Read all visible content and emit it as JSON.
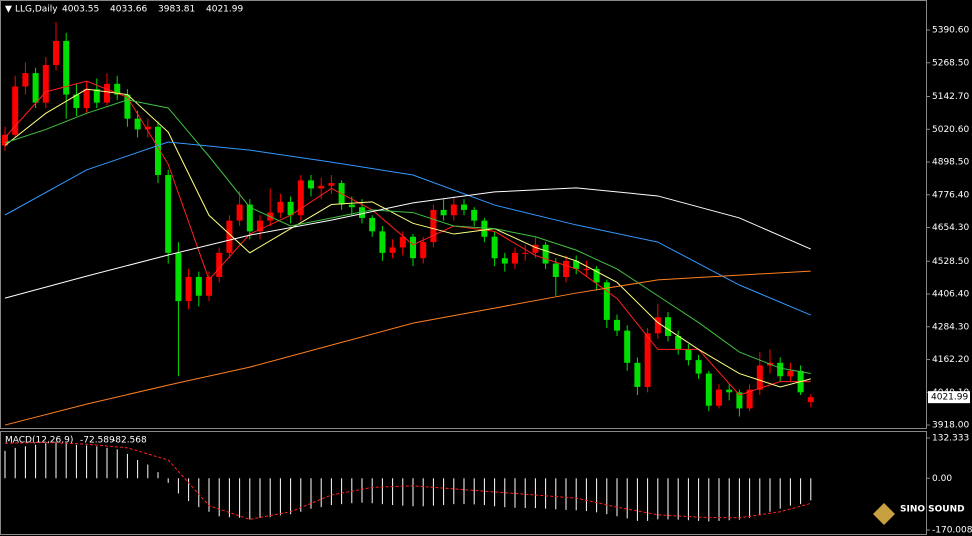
{
  "chart_data": [
    {
      "type": "candlestick",
      "symbol": "LLG,Daily",
      "up_color": "#ff0000",
      "down_color": "#00e000",
      "candles": [
        [
          4960,
          5030,
          4940,
          5000
        ],
        [
          5000,
          5220,
          4990,
          5180
        ],
        [
          5180,
          5270,
          5150,
          5230
        ],
        [
          5230,
          5250,
          5100,
          5120
        ],
        [
          5120,
          5290,
          5100,
          5260
        ],
        [
          5260,
          5420,
          5240,
          5350
        ],
        [
          5350,
          5380,
          5060,
          5150
        ],
        [
          5150,
          5190,
          5070,
          5100
        ],
        [
          5100,
          5200,
          5080,
          5170
        ],
        [
          5170,
          5210,
          5100,
          5120
        ],
        [
          5120,
          5230,
          5110,
          5190
        ],
        [
          5190,
          5220,
          5130,
          5150
        ],
        [
          5150,
          5170,
          5030,
          5060
        ],
        [
          5060,
          5090,
          4990,
          5020
        ],
        [
          5020,
          5060,
          4990,
          5030
        ],
        [
          5030,
          5050,
          4820,
          4850
        ],
        [
          4850,
          4870,
          4520,
          4560
        ],
        [
          4560,
          4600,
          4100,
          4380
        ],
        [
          4380,
          4500,
          4350,
          4470
        ],
        [
          4470,
          4490,
          4360,
          4400
        ],
        [
          4400,
          4490,
          4380,
          4470
        ],
        [
          4470,
          4580,
          4450,
          4560
        ],
        [
          4560,
          4700,
          4540,
          4680
        ],
        [
          4680,
          4790,
          4660,
          4740
        ],
        [
          4740,
          4760,
          4610,
          4640
        ],
        [
          4640,
          4700,
          4610,
          4680
        ],
        [
          4680,
          4800,
          4660,
          4710
        ],
        [
          4710,
          4780,
          4690,
          4750
        ],
        [
          4750,
          4770,
          4670,
          4700
        ],
        [
          4700,
          4850,
          4680,
          4830
        ],
        [
          4830,
          4850,
          4770,
          4800
        ],
        [
          4800,
          4840,
          4760,
          4810
        ],
        [
          4810,
          4850,
          4780,
          4820
        ],
        [
          4820,
          4830,
          4720,
          4740
        ],
        [
          4740,
          4770,
          4700,
          4730
        ],
        [
          4730,
          4760,
          4670,
          4690
        ],
        [
          4690,
          4700,
          4620,
          4640
        ],
        [
          4640,
          4660,
          4530,
          4560
        ],
        [
          4560,
          4610,
          4540,
          4580
        ],
        [
          4580,
          4640,
          4550,
          4620
        ],
        [
          4620,
          4630,
          4510,
          4540
        ],
        [
          4540,
          4620,
          4520,
          4600
        ],
        [
          4600,
          4740,
          4580,
          4720
        ],
        [
          4720,
          4760,
          4680,
          4700
        ],
        [
          4700,
          4770,
          4680,
          4740
        ],
        [
          4740,
          4760,
          4700,
          4720
        ],
        [
          4720,
          4730,
          4660,
          4680
        ],
        [
          4680,
          4690,
          4600,
          4620
        ],
        [
          4620,
          4640,
          4510,
          4540
        ],
        [
          4540,
          4560,
          4490,
          4520
        ],
        [
          4520,
          4580,
          4500,
          4560
        ],
        [
          4560,
          4590,
          4530,
          4560
        ],
        [
          4560,
          4620,
          4540,
          4590
        ],
        [
          4590,
          4600,
          4500,
          4520
        ],
        [
          4520,
          4540,
          4400,
          4470
        ],
        [
          4470,
          4550,
          4450,
          4530
        ],
        [
          4530,
          4550,
          4480,
          4500
        ],
        [
          4500,
          4530,
          4470,
          4500
        ],
        [
          4500,
          4510,
          4420,
          4450
        ],
        [
          4450,
          4460,
          4280,
          4310
        ],
        [
          4310,
          4330,
          4250,
          4270
        ],
        [
          4270,
          4290,
          4120,
          4150
        ],
        [
          4150,
          4170,
          4030,
          4060
        ],
        [
          4060,
          4280,
          4040,
          4260
        ],
        [
          4260,
          4370,
          4240,
          4320
        ],
        [
          4320,
          4340,
          4230,
          4250
        ],
        [
          4250,
          4270,
          4180,
          4200
        ],
        [
          4200,
          4220,
          4140,
          4160
        ],
        [
          4160,
          4180,
          4090,
          4110
        ],
        [
          4110,
          4120,
          3970,
          3990
        ],
        [
          3990,
          4070,
          3980,
          4050
        ],
        [
          4050,
          4070,
          4010,
          4040
        ],
        [
          4040,
          4050,
          3950,
          3980
        ],
        [
          3980,
          4070,
          3970,
          4050
        ],
        [
          4050,
          4190,
          4030,
          4140
        ],
        [
          4140,
          4200,
          4110,
          4150
        ],
        [
          4150,
          4170,
          4080,
          4100
        ],
        [
          4100,
          4150,
          4080,
          4120
        ],
        [
          4120,
          4140,
          4030,
          4040
        ],
        [
          4003.55,
          4033.66,
          3983.81,
          4021.99
        ]
      ],
      "lines": [
        {
          "color": "#ff2020",
          "x": [
            0,
            4,
            8,
            12,
            16,
            20,
            24,
            28,
            32,
            36,
            40,
            44,
            48,
            52,
            56,
            60,
            64,
            68,
            72,
            76,
            79
          ],
          "values": [
            4990,
            5160,
            5200,
            5140,
            4890,
            4460,
            4630,
            4700,
            4800,
            4720,
            4590,
            4660,
            4640,
            4550,
            4500,
            4390,
            4200,
            4200,
            4030,
            4080,
            4080
          ]
        },
        {
          "color": "#ffff80",
          "x": [
            0,
            4,
            8,
            12,
            16,
            20,
            24,
            28,
            32,
            36,
            40,
            44,
            48,
            52,
            56,
            60,
            64,
            68,
            72,
            76,
            79
          ],
          "values": [
            4960,
            5080,
            5170,
            5150,
            5010,
            4700,
            4560,
            4650,
            4740,
            4750,
            4670,
            4630,
            4650,
            4580,
            4530,
            4450,
            4300,
            4200,
            4110,
            4060,
            4090
          ]
        },
        {
          "color": "#40c040",
          "x": [
            0,
            4,
            8,
            12,
            16,
            20,
            24,
            28,
            32,
            36,
            40,
            44,
            48,
            52,
            56,
            60,
            64,
            68,
            72,
            76,
            79
          ],
          "values": [
            4970,
            5020,
            5080,
            5130,
            5100,
            4920,
            4730,
            4660,
            4690,
            4720,
            4710,
            4660,
            4650,
            4620,
            4570,
            4500,
            4400,
            4300,
            4190,
            4130,
            4110
          ]
        },
        {
          "color": "#3399ff",
          "x": [
            0,
            8,
            16,
            24,
            32,
            40,
            48,
            56,
            64,
            72,
            79
          ],
          "values": [
            4701,
            4869,
            4973,
            4943,
            4898,
            4850,
            4738,
            4664,
            4600,
            4440,
            4328
          ]
        },
        {
          "color": "#ffffff",
          "x": [
            0,
            8,
            16,
            24,
            32,
            40,
            48,
            56,
            64,
            72,
            79
          ],
          "values": [
            4391,
            4473,
            4552,
            4626,
            4682,
            4746,
            4787,
            4802,
            4772,
            4690,
            4574
          ]
        },
        {
          "color": "#ff8020",
          "x": [
            0,
            8,
            16,
            24,
            32,
            40,
            48,
            56,
            64,
            72,
            79
          ],
          "values": [
            3918,
            3996,
            4067,
            4134,
            4216,
            4298,
            4354,
            4410,
            4459,
            4477,
            4492
          ]
        }
      ],
      "ylim": [
        3907,
        5495
      ],
      "yticks": [
        {
          "value": 5390.6,
          "label": "5390.60"
        },
        {
          "value": 5268.5,
          "label": "5268.50"
        },
        {
          "value": 5142.7,
          "label": "5142.70"
        },
        {
          "value": 5020.6,
          "label": "5020.60"
        },
        {
          "value": 4898.5,
          "label": "4898.50"
        },
        {
          "value": 4776.4,
          "label": "4776.40"
        },
        {
          "value": 4654.3,
          "label": "4654.30"
        },
        {
          "value": 4528.5,
          "label": "4528.50"
        },
        {
          "value": 4406.4,
          "label": "4406.40"
        },
        {
          "value": 4284.3,
          "label": "4284.30"
        },
        {
          "value": 4162.2,
          "label": "4162.20"
        },
        {
          "value": 4040.1,
          "label": "4040.10"
        },
        {
          "value": 3918,
          "label": "3918.00"
        }
      ]
    },
    {
      "type": "macd",
      "title": "MACD(12,26,9)",
      "hist_color": "#ffffff",
      "histogram": [
        90,
        100,
        105,
        110,
        115,
        120,
        115,
        110,
        108,
        105,
        100,
        95,
        80,
        60,
        45,
        20,
        -15,
        -50,
        -75,
        -95,
        -110,
        -125,
        -128,
        -130,
        -135,
        -130,
        -128,
        -122,
        -118,
        -110,
        -100,
        -95,
        -88,
        -85,
        -82,
        -80,
        -82,
        -85,
        -88,
        -90,
        -92,
        -92,
        -90,
        -88,
        -85,
        -85,
        -86,
        -88,
        -92,
        -95,
        -97,
        -98,
        -98,
        -100,
        -102,
        -104,
        -105,
        -108,
        -112,
        -118,
        -125,
        -132,
        -140,
        -140,
        -135,
        -135,
        -136,
        -138,
        -140,
        -142,
        -140,
        -138,
        -136,
        -130,
        -120,
        -110,
        -100,
        -90,
        -85,
        -72.589
      ],
      "signal": {
        "color": "#ff2020",
        "x": [
          0,
          4,
          8,
          12,
          16,
          20,
          24,
          28,
          32,
          36,
          40,
          44,
          48,
          52,
          56,
          60,
          64,
          68,
          72,
          76,
          79
        ],
        "values": [
          115,
          118,
          112,
          100,
          60,
          -90,
          -135,
          -110,
          -55,
          -30,
          -25,
          -35,
          -45,
          -55,
          -65,
          -95,
          -120,
          -128,
          -130,
          -110,
          -82.568
        ]
      },
      "ylim": [
        -170.008,
        132.333
      ],
      "yticks": [
        132.333,
        {
          "value": 0,
          "label": "0.00"
        },
        -170.008
      ]
    },
    {
      "type": "logo",
      "text": "SINO SOUND"
    }
  ]
}
